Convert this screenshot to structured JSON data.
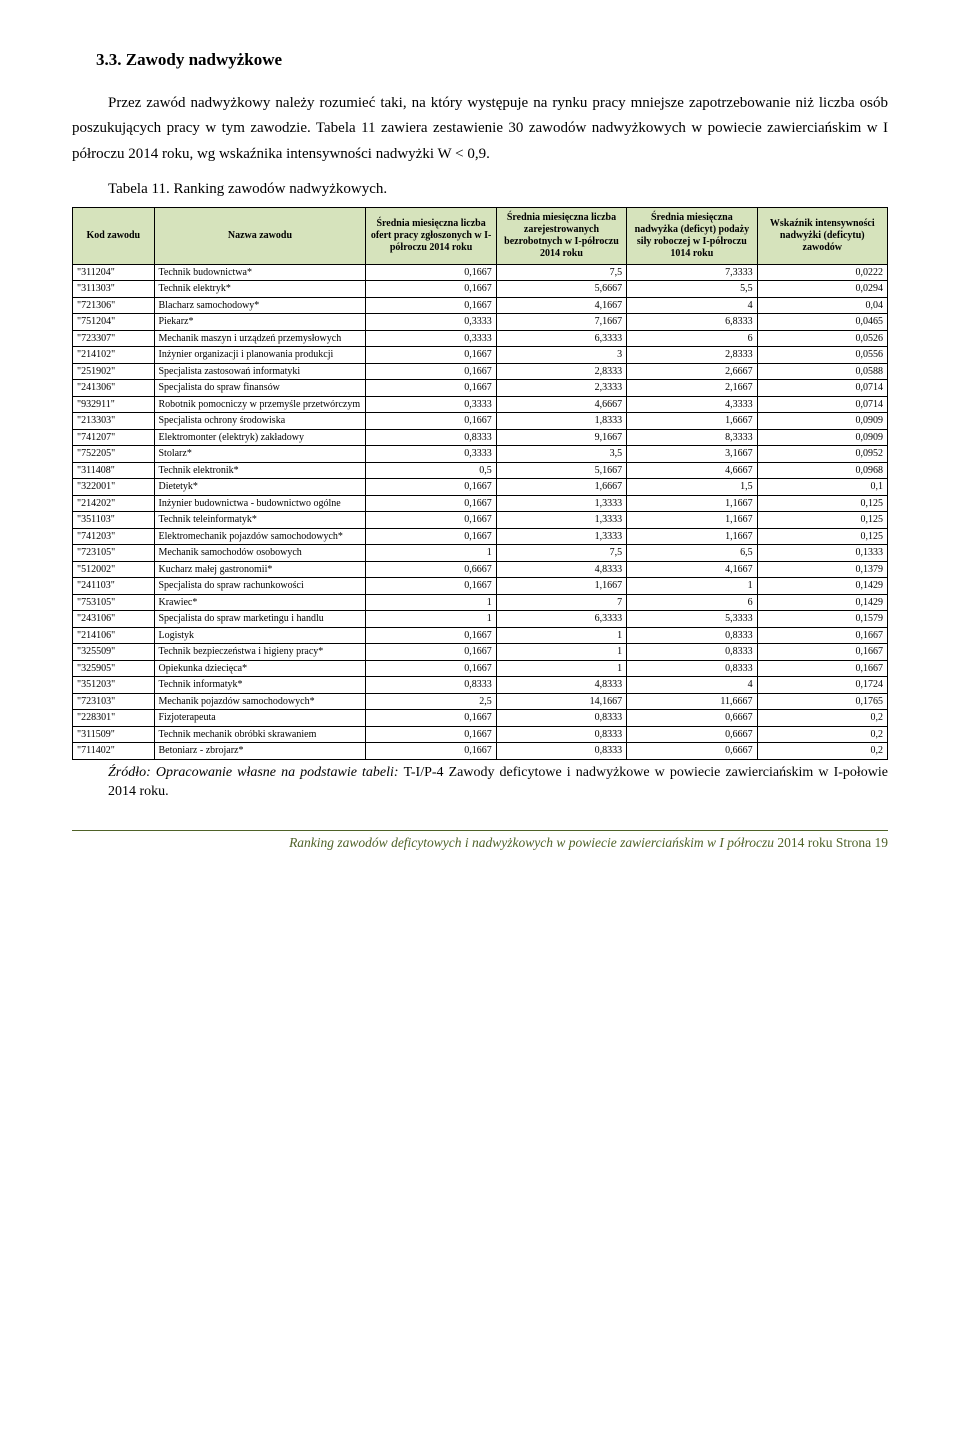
{
  "heading": "3.3.   Zawody nadwyżkowe",
  "paragraph1": "Przez zawód nadwyżkowy należy rozumieć taki, na który występuje na rynku pracy mniejsze zapotrzebowanie niż liczba osób poszukujących pracy w tym zawodzie. Tabela 11 zawiera zestawienie 30 zawodów nadwyżkowych w powiecie zawierciańskim w I półroczu 2014 roku, wg wskaźnika intensywności nadwyżki W < 0,9.",
  "table_caption": "Tabela 11. Ranking zawodów nadwyżkowych.",
  "table": {
    "header_bg": "#d6e3bc",
    "border_color": "#000000",
    "columns": [
      "Kod zawodu",
      "Nazwa zawodu",
      "Średnia miesięczna liczba ofert pracy zgłoszonych w I-półroczu 2014 roku",
      "Średnia miesięczna liczba zarejestrowanych bezrobotnych w I-półroczu 2014 roku",
      "Średnia miesięczna nadwyżka (deficyt) podaży siły roboczej w I-półroczu 1014 roku",
      "Wskaźnik intensywności nadwyżki (deficytu) zawodów"
    ],
    "rows": [
      [
        "\"311204\"",
        "Technik budownictwa*",
        "0,1667",
        "7,5",
        "7,3333",
        "0,0222"
      ],
      [
        "\"311303\"",
        "Technik elektryk*",
        "0,1667",
        "5,6667",
        "5,5",
        "0,0294"
      ],
      [
        "\"721306\"",
        "Blacharz samochodowy*",
        "0,1667",
        "4,1667",
        "4",
        "0,04"
      ],
      [
        "\"751204\"",
        "Piekarz*",
        "0,3333",
        "7,1667",
        "6,8333",
        "0,0465"
      ],
      [
        "\"723307\"",
        "Mechanik maszyn i urządzeń przemysłowych",
        "0,3333",
        "6,3333",
        "6",
        "0,0526"
      ],
      [
        "\"214102\"",
        "Inżynier organizacji i planowania produkcji",
        "0,1667",
        "3",
        "2,8333",
        "0,0556"
      ],
      [
        "\"251902\"",
        "Specjalista zastosowań informatyki",
        "0,1667",
        "2,8333",
        "2,6667",
        "0,0588"
      ],
      [
        "\"241306\"",
        "Specjalista do spraw finansów",
        "0,1667",
        "2,3333",
        "2,1667",
        "0,0714"
      ],
      [
        "\"932911\"",
        "Robotnik pomocniczy w przemyśle przetwórczym",
        "0,3333",
        "4,6667",
        "4,3333",
        "0,0714"
      ],
      [
        "\"213303\"",
        "Specjalista ochrony środowiska",
        "0,1667",
        "1,8333",
        "1,6667",
        "0,0909"
      ],
      [
        "\"741207\"",
        "Elektromonter (elektryk) zakładowy",
        "0,8333",
        "9,1667",
        "8,3333",
        "0,0909"
      ],
      [
        "\"752205\"",
        "Stolarz*",
        "0,3333",
        "3,5",
        "3,1667",
        "0,0952"
      ],
      [
        "\"311408\"",
        "Technik elektronik*",
        "0,5",
        "5,1667",
        "4,6667",
        "0,0968"
      ],
      [
        "\"322001\"",
        "Dietetyk*",
        "0,1667",
        "1,6667",
        "1,5",
        "0,1"
      ],
      [
        "\"214202\"",
        "Inżynier budownictwa - budownictwo ogólne",
        "0,1667",
        "1,3333",
        "1,1667",
        "0,125"
      ],
      [
        "\"351103\"",
        "Technik teleinformatyk*",
        "0,1667",
        "1,3333",
        "1,1667",
        "0,125"
      ],
      [
        "\"741203\"",
        "Elektromechanik pojazdów samochodowych*",
        "0,1667",
        "1,3333",
        "1,1667",
        "0,125"
      ],
      [
        "\"723105\"",
        "Mechanik samochodów osobowych",
        "1",
        "7,5",
        "6,5",
        "0,1333"
      ],
      [
        "\"512002\"",
        "Kucharz małej gastronomii*",
        "0,6667",
        "4,8333",
        "4,1667",
        "0,1379"
      ],
      [
        "\"241103\"",
        "Specjalista do spraw rachunkowości",
        "0,1667",
        "1,1667",
        "1",
        "0,1429"
      ],
      [
        "\"753105\"",
        "Krawiec*",
        "1",
        "7",
        "6",
        "0,1429"
      ],
      [
        "\"243106\"",
        "Specjalista do spraw marketingu i handlu",
        "1",
        "6,3333",
        "5,3333",
        "0,1579"
      ],
      [
        "\"214106\"",
        "Logistyk",
        "0,1667",
        "1",
        "0,8333",
        "0,1667"
      ],
      [
        "\"325509\"",
        "Technik bezpieczeństwa i higieny pracy*",
        "0,1667",
        "1",
        "0,8333",
        "0,1667"
      ],
      [
        "\"325905\"",
        "Opiekunka dziecięca*",
        "0,1667",
        "1",
        "0,8333",
        "0,1667"
      ],
      [
        "\"351203\"",
        "Technik informatyk*",
        "0,8333",
        "4,8333",
        "4",
        "0,1724"
      ],
      [
        "\"723103\"",
        "Mechanik pojazdów samochodowych*",
        "2,5",
        "14,1667",
        "11,6667",
        "0,1765"
      ],
      [
        "\"228301\"",
        "Fizjoterapeuta",
        "0,1667",
        "0,8333",
        "0,6667",
        "0,2"
      ],
      [
        "\"311509\"",
        "Technik mechanik obróbki skrawaniem",
        "0,1667",
        "0,8333",
        "0,6667",
        "0,2"
      ],
      [
        "\"711402\"",
        "Betoniarz - zbrojarz*",
        "0,1667",
        "0,8333",
        "0,6667",
        "0,2"
      ]
    ]
  },
  "source_prefix": "Źródło: Opracowanie własne na podstawie tabeli: ",
  "source_roman": "T-I/P-4 Zawody deficytowe i nadwyżkowe w powiecie zawierciańskim w ",
  "source_tail": "I-połowie 2014 roku.",
  "footer_italic": "Ranking zawodów deficytowych i nadwyżkowych w powiecie zawierciańskim w I półroczu ",
  "footer_roman": "2014 roku  Strona 19",
  "colors": {
    "page_bg": "#ffffff",
    "text": "#000000",
    "accent": "#4f6228",
    "table_header_bg": "#d6e3bc"
  }
}
